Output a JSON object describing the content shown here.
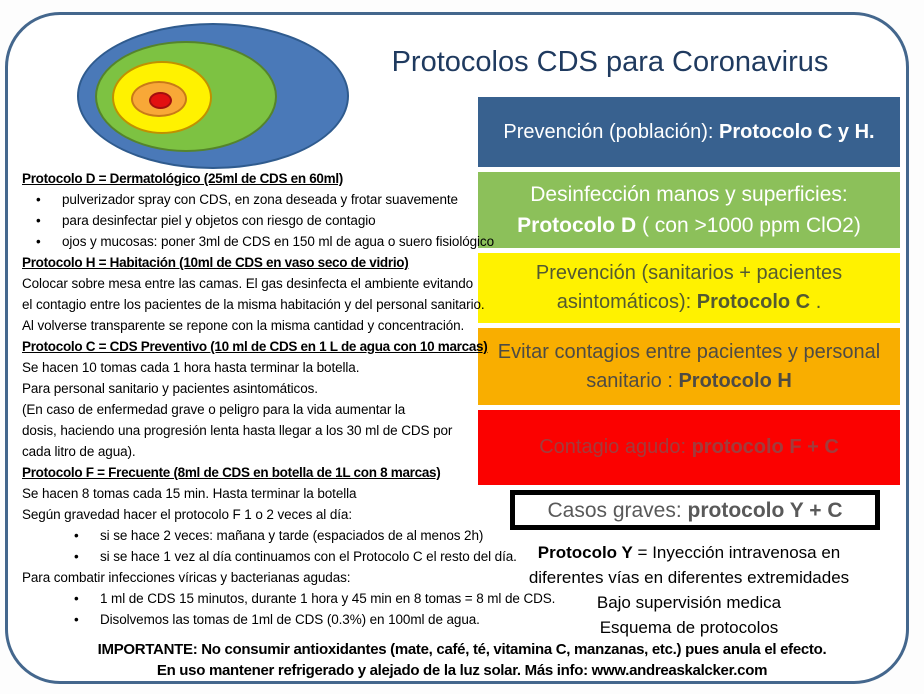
{
  "title": "Protocolos CDS para Coronavirus",
  "colors": {
    "frame_border": "#44678D",
    "title_text": "#1F3A5F",
    "box_blue": "#38618F",
    "box_green": "#8CC05A",
    "box_yellow": "#FFF200",
    "box_orange": "#F9AE00",
    "box_red": "#FB0100",
    "grave_box_border": "#000000",
    "ring_blue": "#4A79B8",
    "ring_green": "#7DC242",
    "ring_yellow": "#FFF200",
    "ring_orange": "#F8A837",
    "ring_red": "#E21111"
  },
  "protocol_boxes": [
    {
      "prefix": "Prevención (población): ",
      "bold": "Protocolo C y H.",
      "suffix": ""
    },
    {
      "prefix": "Desinfección manos y superficies: ",
      "bold": "Protocolo D",
      "suffix": " ( con >1000 ppm ClO2)"
    },
    {
      "prefix": "Prevención (sanitarios + pacientes asintomáticos): ",
      "bold": "Protocolo C",
      "suffix": " ."
    },
    {
      "prefix": "Evitar contagios entre pacientes y personal sanitario : ",
      "bold": "Protocolo H",
      "suffix": ""
    },
    {
      "prefix": "Contagio agudo: ",
      "bold": "protocolo F + C",
      "suffix": ""
    },
    {
      "prefix": "Casos graves: ",
      "bold": "protocolo Y + C",
      "suffix": ""
    }
  ],
  "note": {
    "bold": "Protocolo Y",
    "rest": " = Inyección intravenosa en",
    "line2": "diferentes vías en diferentes extremidades",
    "line3": "Bajo supervisión medica",
    "line4": "Esquema de protocolos"
  },
  "left_sections": [
    {
      "heading": "Protocolo D = Dermatológico (25ml de CDS en 60ml)",
      "bullets": [
        "pulverizador spray con CDS, en zona deseada y frotar suavemente",
        "para desinfectar piel y objetos con riesgo de contagio",
        "ojos y mucosas: poner 3ml de CDS en 150 ml de agua o suero fisiológico"
      ]
    },
    {
      "heading": "Protocolo H = Habitación (10ml de CDS en vaso seco de vidrio)",
      "lines": [
        "Colocar sobre mesa entre las camas. El gas desinfecta el ambiente evitando",
        " el contagio entre los pacientes de la misma habitación y del personal sanitario.",
        "Al volverse transparente se repone con la misma cantidad y concentración."
      ]
    },
    {
      "heading": "Protocolo C = CDS Preventivo (10 ml de CDS en 1 L de agua con 10 marcas)",
      "lines": [
        "Se hacen 10 tomas cada 1 hora hasta terminar la botella.",
        "Para personal sanitario y pacientes asintomáticos.",
        "(En caso de enfermedad grave o peligro para la vida aumentar la",
        "dosis, haciendo una progresión lenta hasta llegar a los 30 ml de CDS por",
        "cada litro de agua)."
      ]
    },
    {
      "heading": "Protocolo F = Frecuente (8ml de CDS en botella de 1L con 8 marcas)",
      "lines": [
        "Se hacen 8 tomas cada 15 min. Hasta terminar la botella",
        "Según gravedad hacer el protocolo F 1 o 2 veces al día:"
      ],
      "bullets": [
        "si se hace 2 veces: mañana y tarde (espaciados de al menos 2h)",
        "si se hace 1 vez al día continuamos con el Protocolo C el resto del día."
      ],
      "line3": "Para combatir infecciones víricas y bacterianas agudas:",
      "bullets2": [
        "1 ml de CDS 15 minutos, durante 1 hora y 45 min en 8 tomas = 8 ml de CDS.",
        "Disolvemos las tomas de 1ml de CDS (0.3%) en 100ml de agua."
      ]
    }
  ],
  "footer": {
    "line1": "IMPORTANTE: No consumir antioxidantes  (mate, café, té, vitamina C, manzanas, etc.) pues anula el efecto.",
    "line2": "En uso mantener refrigerado y alejado de la luz solar.  Más info: www.andreaskalcker.com"
  }
}
